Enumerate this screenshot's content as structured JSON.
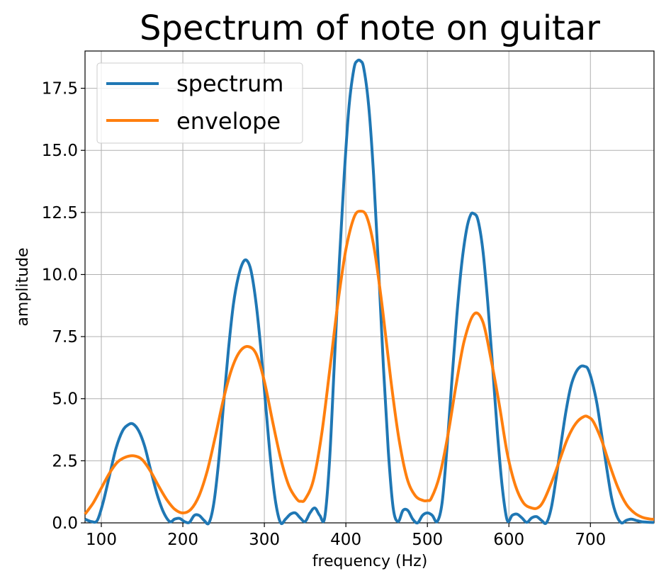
{
  "chart_data": {
    "type": "line",
    "title": "Spectrum of note on guitar",
    "xlabel": "frequency (Hz)",
    "ylabel": "amplitude",
    "xlim": [
      80,
      778
    ],
    "ylim": [
      0,
      19
    ],
    "xticks": [
      100,
      200,
      300,
      400,
      500,
      600,
      700
    ],
    "yticks": [
      0.0,
      2.5,
      5.0,
      7.5,
      10.0,
      12.5,
      15.0,
      17.5
    ],
    "ytick_labels": [
      "0.0",
      "2.5",
      "5.0",
      "7.5",
      "10.0",
      "12.5",
      "15.0",
      "17.5"
    ],
    "grid": true,
    "legend_position": "top-left",
    "series": [
      {
        "name": "spectrum",
        "color": "#1f77b4",
        "x": [
          80,
          88,
          95,
          102,
          110,
          118,
          126,
          133,
          139,
          146,
          153,
          160,
          168,
          176,
          184,
          190,
          196,
          202,
          208,
          214,
          220,
          226,
          232,
          238,
          244,
          250,
          256,
          262,
          268,
          274,
          279,
          284,
          290,
          296,
          302,
          308,
          314,
          320,
          326,
          332,
          338,
          344,
          350,
          356,
          362,
          368,
          374,
          380,
          386,
          392,
          398,
          404,
          410,
          414,
          418,
          422,
          428,
          434,
          440,
          446,
          452,
          458,
          464,
          470,
          476,
          482,
          488,
          494,
          500,
          506,
          512,
          518,
          524,
          530,
          536,
          542,
          548,
          553,
          557,
          562,
          568,
          574,
          580,
          586,
          592,
          598,
          604,
          610,
          616,
          622,
          628,
          634,
          640,
          646,
          652,
          658,
          664,
          670,
          676,
          682,
          688,
          693,
          697,
          702,
          708,
          714,
          720,
          726,
          732,
          738,
          744,
          750,
          756,
          762,
          768,
          774,
          778
        ],
        "y": [
          0.15,
          0.05,
          0.1,
          0.8,
          1.9,
          3.0,
          3.7,
          3.95,
          3.98,
          3.7,
          3.1,
          2.2,
          1.2,
          0.45,
          0.05,
          0.15,
          0.18,
          0.05,
          0.02,
          0.3,
          0.3,
          0.1,
          0.0,
          0.8,
          2.5,
          4.8,
          7.0,
          8.8,
          9.9,
          10.5,
          10.55,
          10.1,
          8.8,
          6.9,
          4.6,
          2.4,
          0.8,
          0.0,
          0.15,
          0.35,
          0.4,
          0.2,
          0.05,
          0.4,
          0.6,
          0.3,
          0.2,
          2.5,
          6.5,
          10.5,
          14.0,
          16.8,
          18.3,
          18.6,
          18.6,
          18.3,
          16.8,
          14.0,
          10.3,
          6.3,
          2.9,
          0.6,
          0.05,
          0.5,
          0.5,
          0.15,
          0.0,
          0.3,
          0.4,
          0.3,
          0.05,
          0.8,
          3.0,
          5.7,
          8.3,
          10.4,
          11.8,
          12.4,
          12.45,
          12.2,
          11.0,
          8.9,
          6.3,
          3.6,
          1.4,
          0.1,
          0.3,
          0.35,
          0.2,
          0.02,
          0.2,
          0.25,
          0.1,
          0.0,
          0.6,
          1.8,
          3.2,
          4.5,
          5.5,
          6.05,
          6.3,
          6.3,
          6.2,
          5.7,
          4.8,
          3.5,
          2.2,
          1.0,
          0.3,
          0.0,
          0.1,
          0.15,
          0.1,
          0.05,
          0.03,
          0.02,
          0.02
        ]
      },
      {
        "name": "envelope",
        "color": "#ff7f0e",
        "x": [
          80,
          90,
          100,
          110,
          120,
          130,
          140,
          150,
          160,
          170,
          180,
          190,
          200,
          210,
          220,
          230,
          240,
          250,
          260,
          270,
          280,
          290,
          300,
          310,
          320,
          330,
          340,
          345,
          350,
          360,
          370,
          380,
          390,
          400,
          410,
          418,
          426,
          435,
          445,
          455,
          465,
          475,
          485,
          495,
          500,
          505,
          515,
          525,
          535,
          545,
          557,
          568,
          578,
          588,
          598,
          608,
          618,
          628,
          635,
          642,
          652,
          662,
          672,
          682,
          692,
          698,
          704,
          714,
          724,
          734,
          744,
          754,
          764,
          774,
          778
        ],
        "y": [
          0.35,
          0.8,
          1.4,
          2.0,
          2.45,
          2.65,
          2.7,
          2.55,
          2.1,
          1.5,
          0.95,
          0.55,
          0.4,
          0.55,
          1.1,
          2.1,
          3.5,
          5.0,
          6.2,
          6.9,
          7.1,
          6.8,
          5.7,
          4.1,
          2.6,
          1.5,
          0.95,
          0.87,
          0.95,
          1.7,
          3.5,
          6.1,
          8.8,
          11.0,
          12.3,
          12.55,
          12.3,
          11.0,
          8.6,
          5.8,
          3.4,
          1.8,
          1.1,
          0.9,
          0.9,
          1.0,
          1.9,
          3.5,
          5.5,
          7.3,
          8.4,
          8.1,
          6.6,
          4.8,
          2.8,
          1.5,
          0.8,
          0.6,
          0.6,
          0.85,
          1.6,
          2.5,
          3.4,
          4.0,
          4.28,
          4.25,
          4.05,
          3.3,
          2.3,
          1.4,
          0.75,
          0.4,
          0.22,
          0.15,
          0.15
        ]
      }
    ]
  }
}
